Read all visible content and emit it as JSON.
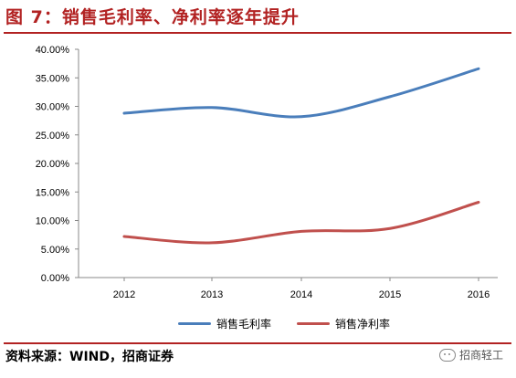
{
  "figure": {
    "title": "图 7：销售毛利率、净利率逐年提升",
    "source": "资料来源：WIND，招商证券",
    "watermark": "招商轻工",
    "watermark_icon": "wechat-icon"
  },
  "chart_data": {
    "type": "line",
    "title": "",
    "xlabel": "",
    "ylabel": "",
    "categories": [
      "2012",
      "2013",
      "2014",
      "2015",
      "2016"
    ],
    "ylim": [
      0,
      40
    ],
    "yticks": [
      "0.00%",
      "5.00%",
      "10.00%",
      "15.00%",
      "20.00%",
      "25.00%",
      "30.00%",
      "35.00%",
      "40.00%"
    ],
    "grid": false,
    "legend_position": "bottom",
    "series": [
      {
        "name": "销售毛利率",
        "color": "#4a7ebb",
        "values": [
          28.8,
          29.8,
          28.2,
          31.7,
          36.6
        ]
      },
      {
        "name": "销售净利率",
        "color": "#c0504d",
        "values": [
          7.2,
          6.1,
          8.1,
          8.6,
          13.2
        ]
      }
    ]
  }
}
